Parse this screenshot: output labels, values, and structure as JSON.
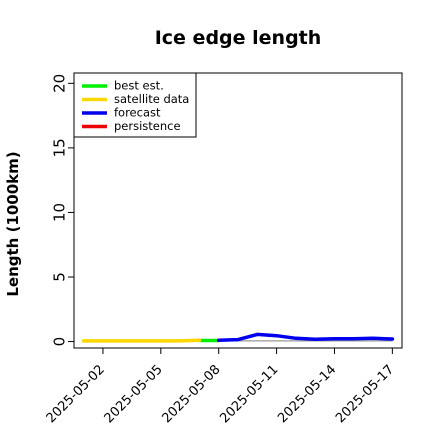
{
  "chart_data": {
    "type": "line",
    "title": "Ice edge length",
    "xlabel": "",
    "ylabel": "Length (1000km)",
    "x_axis_type": "date",
    "xlim": [
      "2025-04-30T12:00",
      "2025-05-17T12:00"
    ],
    "ylim": [
      -0.5,
      20.8
    ],
    "yticks": [
      0,
      5,
      10,
      15,
      20
    ],
    "xticks": [
      "2025-05-02",
      "2025-05-05",
      "2025-05-08",
      "2025-05-11",
      "2025-05-14",
      "2025-05-17"
    ],
    "highlighted_xtick": "2025-05-08",
    "highlight_color": "#228B22",
    "grid": false,
    "legend_position": "top-left",
    "series": [
      {
        "name": "best est.",
        "color": "#00ee00",
        "x": [
          "2025-05-07",
          "2025-05-08"
        ],
        "y": [
          0.08,
          0.08
        ]
      },
      {
        "name": "satellite data",
        "color": "#ffd700",
        "x": [
          "2025-05-01",
          "2025-05-02",
          "2025-05-03",
          "2025-05-04",
          "2025-05-05",
          "2025-05-06",
          "2025-05-07"
        ],
        "y": [
          0.05,
          0.05,
          0.05,
          0.05,
          0.05,
          0.05,
          0.1
        ]
      },
      {
        "name": "forecast",
        "color": "#0000ee",
        "x": [
          "2025-05-08",
          "2025-05-09",
          "2025-05-10",
          "2025-05-11",
          "2025-05-12",
          "2025-05-13",
          "2025-05-14",
          "2025-05-15",
          "2025-05-16",
          "2025-05-17"
        ],
        "y": [
          0.1,
          0.15,
          0.55,
          0.45,
          0.25,
          0.18,
          0.22,
          0.22,
          0.25,
          0.2
        ]
      },
      {
        "name": "persistence",
        "color": "#ee0000",
        "x": [],
        "y": []
      }
    ],
    "reference_line": {
      "color": "#999999",
      "x": [
        "2025-05-07",
        "2025-05-17"
      ],
      "y": [
        0.05,
        0.05
      ]
    }
  }
}
